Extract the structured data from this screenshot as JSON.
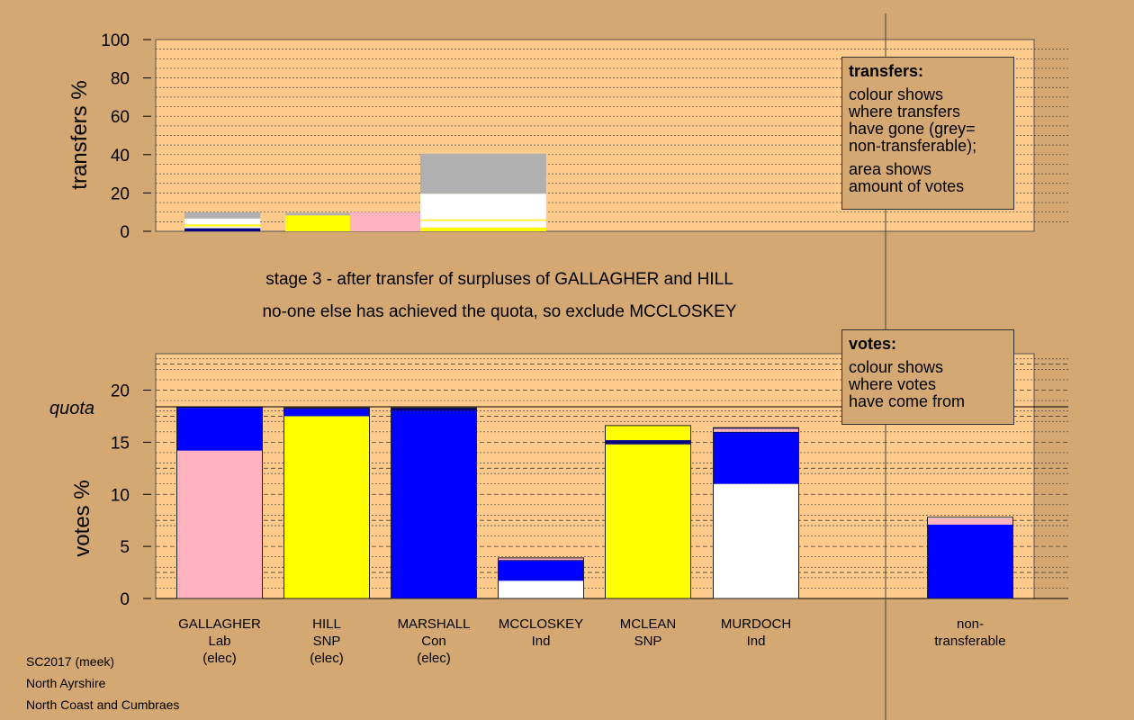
{
  "chart_data": [
    {
      "type": "bar",
      "stacked": true,
      "ylabel": "transfers %",
      "ylim": [
        0,
        100
      ],
      "yticks": [
        0,
        20,
        40,
        60,
        80,
        100
      ],
      "grid": true,
      "legend": "top-right",
      "colors": {
        "pink": "#ffb3c1",
        "yellow": "#ffff00",
        "blue": "#0000ff",
        "navy": "#000080",
        "white": "#ffffff",
        "grey": "#b0b0b0"
      },
      "transfers": [
        {
          "name": "GALLAGHER",
          "width": 4.1,
          "segments": [
            {
              "color": "navy",
              "value": 1.6
            },
            {
              "color": "white",
              "value": 1.0
            },
            {
              "color": "yellow",
              "value": 1.0
            },
            {
              "color": "white",
              "value": 3.1
            },
            {
              "color": "grey",
              "value": 3.2
            }
          ]
        },
        {
          "name": "HILL",
          "width": 3.5,
          "segments": [
            {
              "color": "yellow",
              "value": 8.3
            },
            {
              "color": "grey",
              "value": 1.3
            }
          ]
        },
        {
          "name": "MCCLOSKEY",
          "width": 3.8,
          "segments": [
            {
              "color": "pink",
              "value": 10.0
            }
          ]
        },
        {
          "name": "MCCLOSKEY",
          "width": 6.8,
          "segments": [
            {
              "color": "yellow",
              "value": 2.0
            },
            {
              "color": "white",
              "value": 3.5
            },
            {
              "color": "yellow",
              "value": 0.7
            },
            {
              "color": "white",
              "value": 13.4
            },
            {
              "color": "grey",
              "value": 20.9
            }
          ]
        }
      ]
    },
    {
      "type": "bar",
      "stacked": true,
      "ylabel": "votes %",
      "ylim": [
        0,
        23.5
      ],
      "yticks": [
        0,
        5,
        10,
        15,
        20
      ],
      "grid": true,
      "quota": 18.4,
      "quota_label": "quota",
      "categories": [
        {
          "name": "GALLAGHER",
          "party": "Lab",
          "status": "(elec)"
        },
        {
          "name": "HILL",
          "party": "SNP",
          "status": "(elec)"
        },
        {
          "name": "MARSHALL",
          "party": "Con",
          "status": "(elec)"
        },
        {
          "name": "MCCLOSKEY",
          "party": "Ind",
          "status": ""
        },
        {
          "name": "MCLEAN",
          "party": "SNP",
          "status": ""
        },
        {
          "name": "MURDOCH",
          "party": "Ind",
          "status": ""
        }
      ],
      "nontransferable_label": [
        "non-",
        "transferable"
      ],
      "votes": [
        {
          "segments": [
            {
              "color": "pink",
              "value": 14.2
            },
            {
              "color": "blue",
              "value": 4.1
            },
            {
              "color": "navy",
              "value": 0.1
            }
          ]
        },
        {
          "segments": [
            {
              "color": "yellow",
              "value": 17.5
            },
            {
              "color": "blue",
              "value": 0.7
            },
            {
              "color": "navy",
              "value": 0.1
            }
          ]
        },
        {
          "segments": [
            {
              "color": "blue",
              "value": 18.0
            },
            {
              "color": "navy",
              "value": 0.3
            }
          ]
        },
        {
          "segments": [
            {
              "color": "white",
              "value": 1.7
            },
            {
              "color": "blue",
              "value": 1.9
            },
            {
              "color": "navy",
              "value": 0.1
            },
            {
              "color": "pink",
              "value": 0.2
            }
          ]
        },
        {
          "segments": [
            {
              "color": "yellow",
              "value": 14.8
            },
            {
              "color": "navy",
              "value": 0.4
            },
            {
              "color": "yellow",
              "value": 1.4
            }
          ]
        },
        {
          "segments": [
            {
              "color": "white",
              "value": 11.0
            },
            {
              "color": "blue",
              "value": 4.9
            },
            {
              "color": "navy",
              "value": 0.1
            },
            {
              "color": "pink",
              "value": 0.3
            },
            {
              "color": "navy",
              "value": 0.1
            }
          ]
        },
        {
          "segments": [
            {
              "color": "blue",
              "value": 7.1
            },
            {
              "color": "pink",
              "value": 0.6
            },
            {
              "color": "white",
              "value": 0.1
            }
          ]
        }
      ]
    }
  ],
  "stage_line1": "stage 3 - after transfer of surpluses of GALLAGHER and HILL",
  "stage_line2": "no-one else has achieved the quota, so exclude MCCLOSKEY",
  "transfers_box": {
    "title": "transfers:",
    "lines": [
      "colour shows",
      "where transfers",
      "have gone (grey=",
      "non-transferable);"
    ],
    "lines2": [
      "area shows",
      "amount of votes"
    ]
  },
  "votes_box": {
    "title": "votes:",
    "lines": [
      "colour shows",
      "where votes",
      "have come from"
    ]
  },
  "footer": [
    "SC2017 (meek)",
    "North Ayrshire",
    "North Coast and Cumbraes"
  ]
}
